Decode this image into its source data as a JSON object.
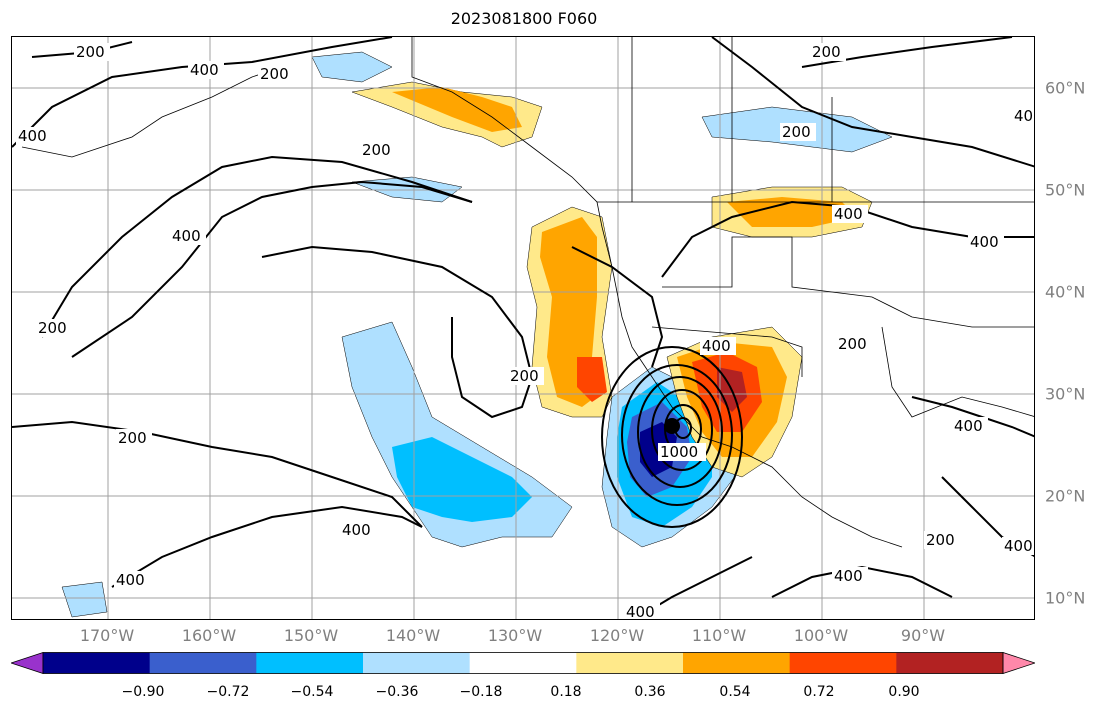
{
  "title": "2023081800 F060",
  "lon_labels": [
    "170°W",
    "160°W",
    "150°W",
    "140°W",
    "130°W",
    "120°W",
    "110°W",
    "100°W",
    "90°W"
  ],
  "lat_labels": [
    "60°N",
    "50°N",
    "40°N",
    "30°N",
    "20°N",
    "10°N"
  ],
  "colorbar": {
    "ticks": [
      "−0.90",
      "−0.72",
      "−0.54",
      "−0.36",
      "−0.18",
      "0.18",
      "0.36",
      "0.54",
      "0.72",
      "0.90"
    ],
    "colors": [
      "#9932cc",
      "#00008b",
      "#3a5fcd",
      "#00bfff",
      "#afe0ff",
      "#ffffff",
      "#ffe98a",
      "#ffa500",
      "#ff4500",
      "#b22222",
      "#ff88aa"
    ],
    "extend": "both"
  },
  "contour_labels": [
    "200",
    "400",
    "1000"
  ],
  "accent_colors": {
    "label_gray": "#808080",
    "contour": "#000000",
    "grid": "#a0a0a0"
  }
}
